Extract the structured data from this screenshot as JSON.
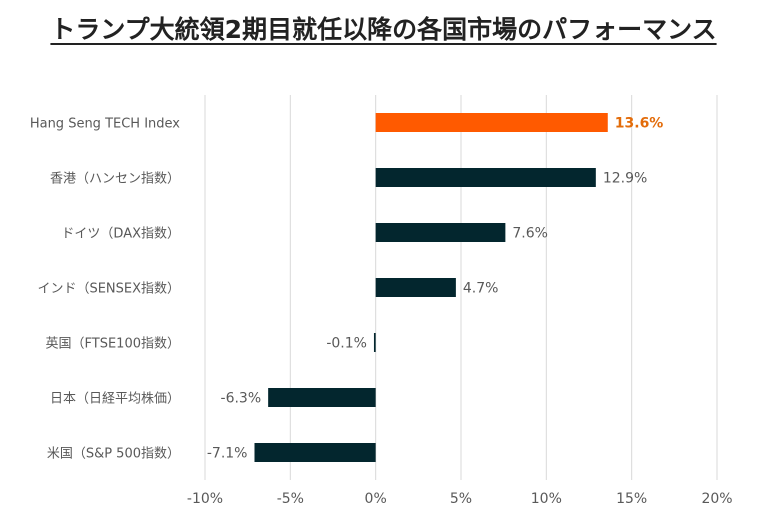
{
  "colors": {
    "highlight": "#ff5a00",
    "bar": "#03262e",
    "grid": "#d9d9d9",
    "highlight_label": "#e36c0a"
  },
  "chart_data": {
    "type": "bar",
    "orientation": "horizontal",
    "title": "トランプ大統領2期目就任以降の各国市場のパフォーマンス",
    "categories": [
      "Hang Seng TECH Index",
      "香港（ハンセン指数）",
      "ドイツ（DAX指数）",
      "インド（SENSEX指数）",
      "英国（FTSE100指数）",
      "日本（日経平均株価）",
      "米国（S&P 500指数）"
    ],
    "values": [
      13.6,
      12.9,
      7.6,
      4.7,
      -0.1,
      -6.3,
      -7.1
    ],
    "data_labels": [
      "13.6%",
      "12.9%",
      "7.6%",
      "4.7%",
      "-0.1%",
      "-6.3%",
      "-7.1%"
    ],
    "highlight_index": 0,
    "xlim": [
      -10,
      20
    ],
    "xticks": [
      -10,
      -5,
      0,
      5,
      10,
      15,
      20
    ],
    "xtick_labels": [
      "-10%",
      "-5%",
      "0%",
      "5%",
      "10%",
      "15%",
      "20%"
    ],
    "grid": true,
    "legend": "none"
  }
}
